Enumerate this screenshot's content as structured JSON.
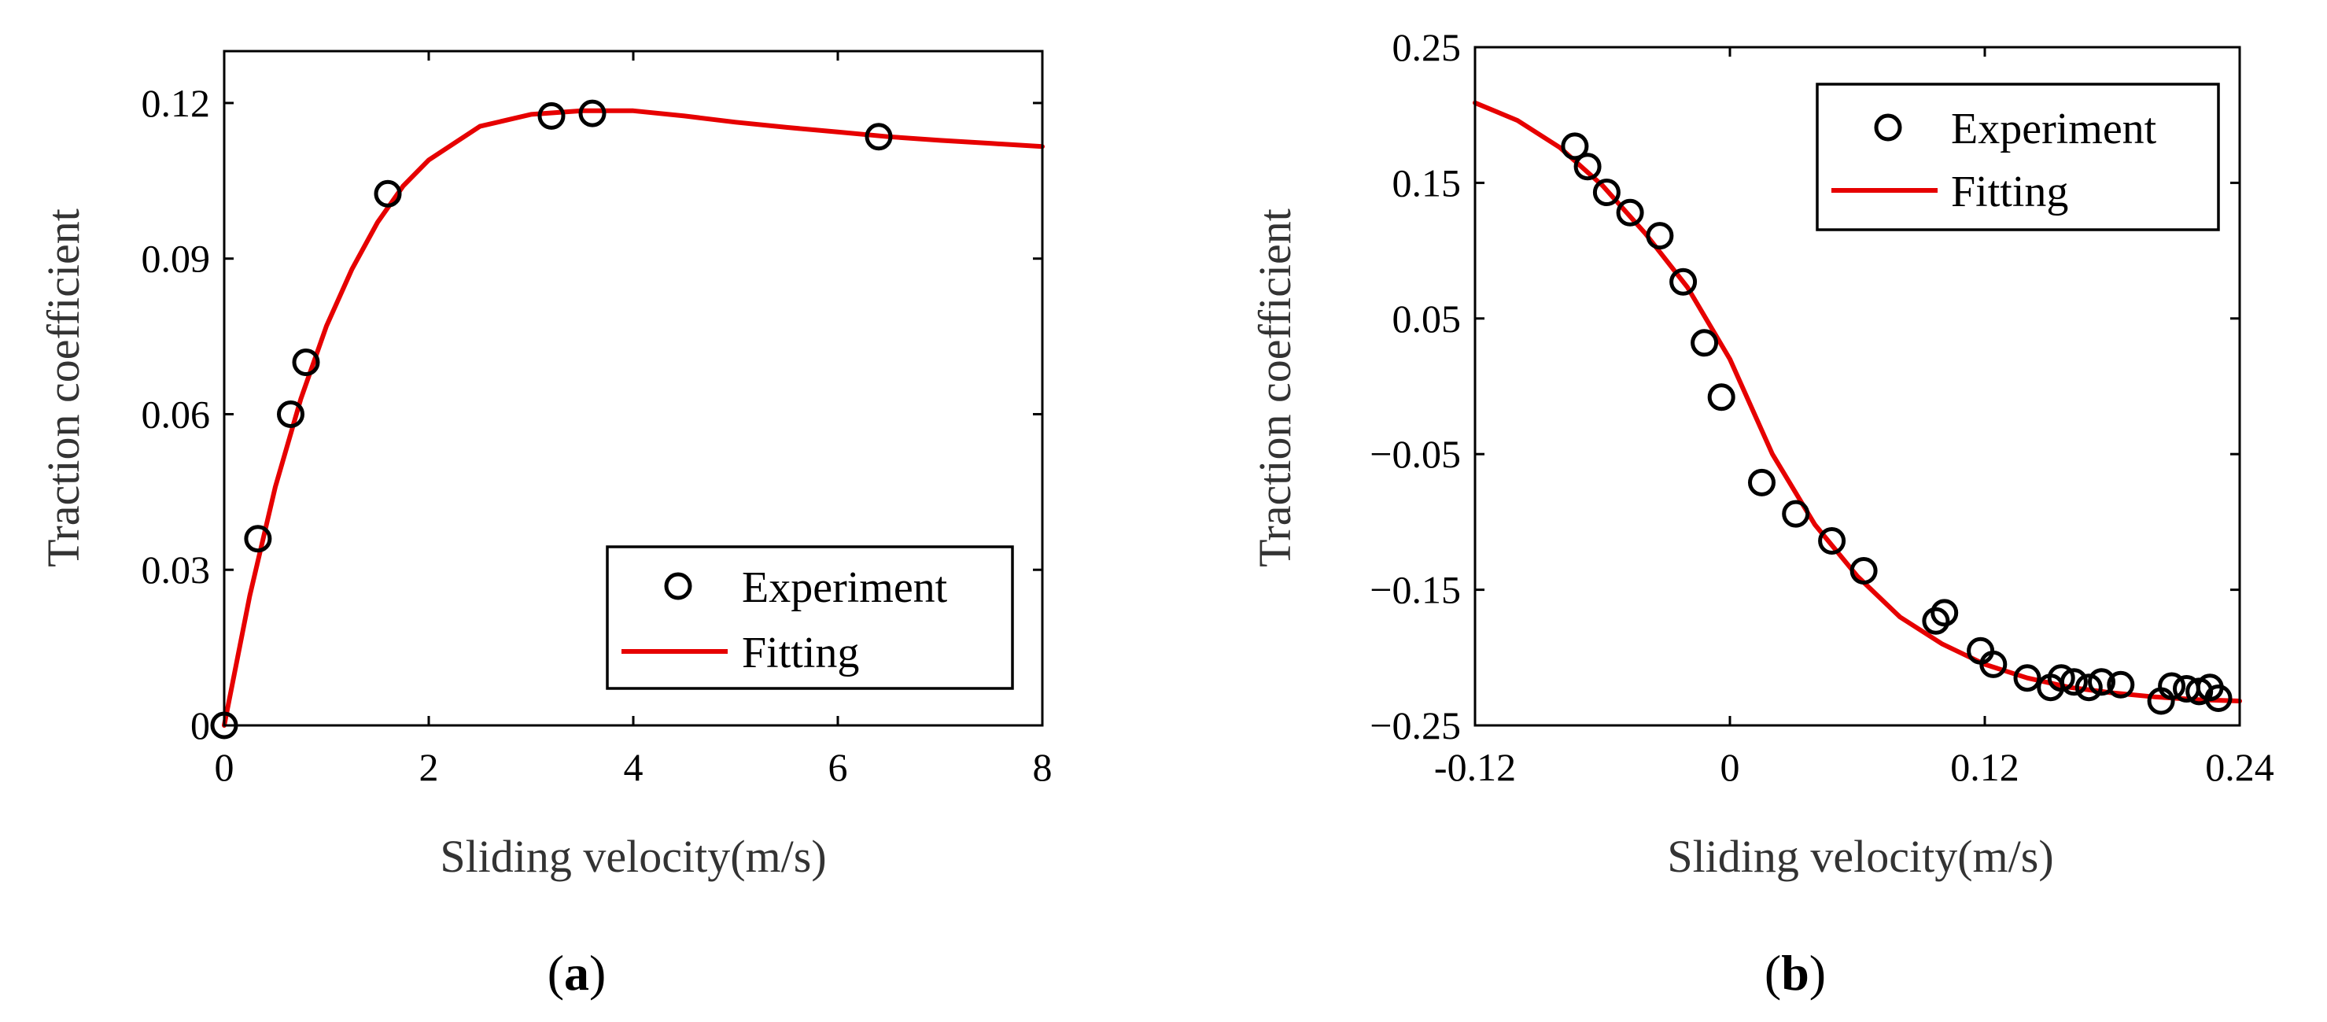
{
  "chart_data": [
    {
      "type": "scatter",
      "panel_label": "a",
      "title": "",
      "xlabel": "Sliding velocity(m/s)",
      "ylabel": "Traction coefficient",
      "xlim": [
        0,
        8
      ],
      "ylim": [
        0,
        0.13
      ],
      "x_ticks": [
        0,
        2,
        4,
        6,
        8
      ],
      "x_tick_labels": [
        "0",
        "2",
        "4",
        "6",
        "8"
      ],
      "y_ticks": [
        0,
        0.03,
        0.06,
        0.09,
        0.12
      ],
      "y_tick_labels": [
        "0",
        "0.03",
        "0.06",
        "0.09",
        "0.12"
      ],
      "legend_position": "bottom-right",
      "series": [
        {
          "name": "Experiment",
          "kind": "markers",
          "color": "#000000",
          "x": [
            0,
            0.33,
            0.65,
            0.8,
            1.6,
            3.2,
            3.6,
            6.4
          ],
          "y": [
            0,
            0.036,
            0.06,
            0.07,
            0.1025,
            0.1175,
            0.118,
            0.1135
          ]
        },
        {
          "name": "Fitting",
          "kind": "line",
          "color": "#e60000",
          "x": [
            0,
            0.25,
            0.5,
            0.75,
            1.0,
            1.25,
            1.5,
            1.75,
            2.0,
            2.5,
            3.0,
            3.5,
            4.0,
            4.5,
            5.0,
            5.5,
            6.0,
            6.5,
            7.0,
            7.5,
            8.0
          ],
          "y": [
            0,
            0.025,
            0.046,
            0.063,
            0.077,
            0.088,
            0.097,
            0.104,
            0.109,
            0.1155,
            0.1178,
            0.1185,
            0.1185,
            0.1175,
            0.1163,
            0.1153,
            0.1144,
            0.1135,
            0.1128,
            0.1122,
            0.1116
          ]
        }
      ]
    },
    {
      "type": "scatter",
      "panel_label": "b",
      "title": "",
      "xlabel": "Sliding velocity(m/s)",
      "ylabel": "Traction coefficient",
      "xlim": [
        -0.12,
        0.24
      ],
      "ylim": [
        -0.25,
        0.25
      ],
      "x_ticks": [
        -0.12,
        0,
        0.12,
        0.24
      ],
      "x_tick_labels": [
        "-0.12",
        "0",
        "0.12",
        "0.24"
      ],
      "y_ticks": [
        0.25,
        0.15,
        0.05,
        -0.05,
        -0.15,
        -0.25
      ],
      "y_tick_labels": [
        "0.25",
        "0.15",
        "0.05",
        "−0.05",
        "−0.15",
        "−0.25"
      ],
      "legend_position": "top-right",
      "series": [
        {
          "name": "Experiment",
          "kind": "markers",
          "color": "#000000",
          "x": [
            -0.073,
            -0.067,
            -0.058,
            -0.047,
            -0.033,
            -0.022,
            -0.012,
            -0.004,
            0.015,
            0.031,
            0.048,
            0.063,
            0.097,
            0.101,
            0.118,
            0.124,
            0.14,
            0.151,
            0.156,
            0.162,
            0.169,
            0.175,
            0.184,
            0.203,
            0.208,
            0.215,
            0.221,
            0.226,
            0.23
          ],
          "y": [
            0.177,
            0.162,
            0.143,
            0.128,
            0.111,
            0.077,
            0.032,
            -0.008,
            -0.071,
            -0.094,
            -0.114,
            -0.136,
            -0.173,
            -0.167,
            -0.195,
            -0.205,
            -0.215,
            -0.222,
            -0.215,
            -0.218,
            -0.222,
            -0.218,
            -0.22,
            -0.232,
            -0.221,
            -0.223,
            -0.225,
            -0.222,
            -0.23
          ]
        },
        {
          "name": "Fitting",
          "kind": "line",
          "color": "#e60000",
          "x": [
            -0.12,
            -0.1,
            -0.08,
            -0.06,
            -0.04,
            -0.02,
            0.0,
            0.02,
            0.04,
            0.06,
            0.08,
            0.1,
            0.12,
            0.14,
            0.16,
            0.18,
            0.2,
            0.22,
            0.24
          ],
          "y": [
            0.209,
            0.196,
            0.176,
            0.148,
            0.113,
            0.073,
            0.02,
            -0.05,
            -0.102,
            -0.14,
            -0.17,
            -0.19,
            -0.205,
            -0.215,
            -0.222,
            -0.226,
            -0.229,
            -0.231,
            -0.232
          ]
        }
      ]
    }
  ]
}
